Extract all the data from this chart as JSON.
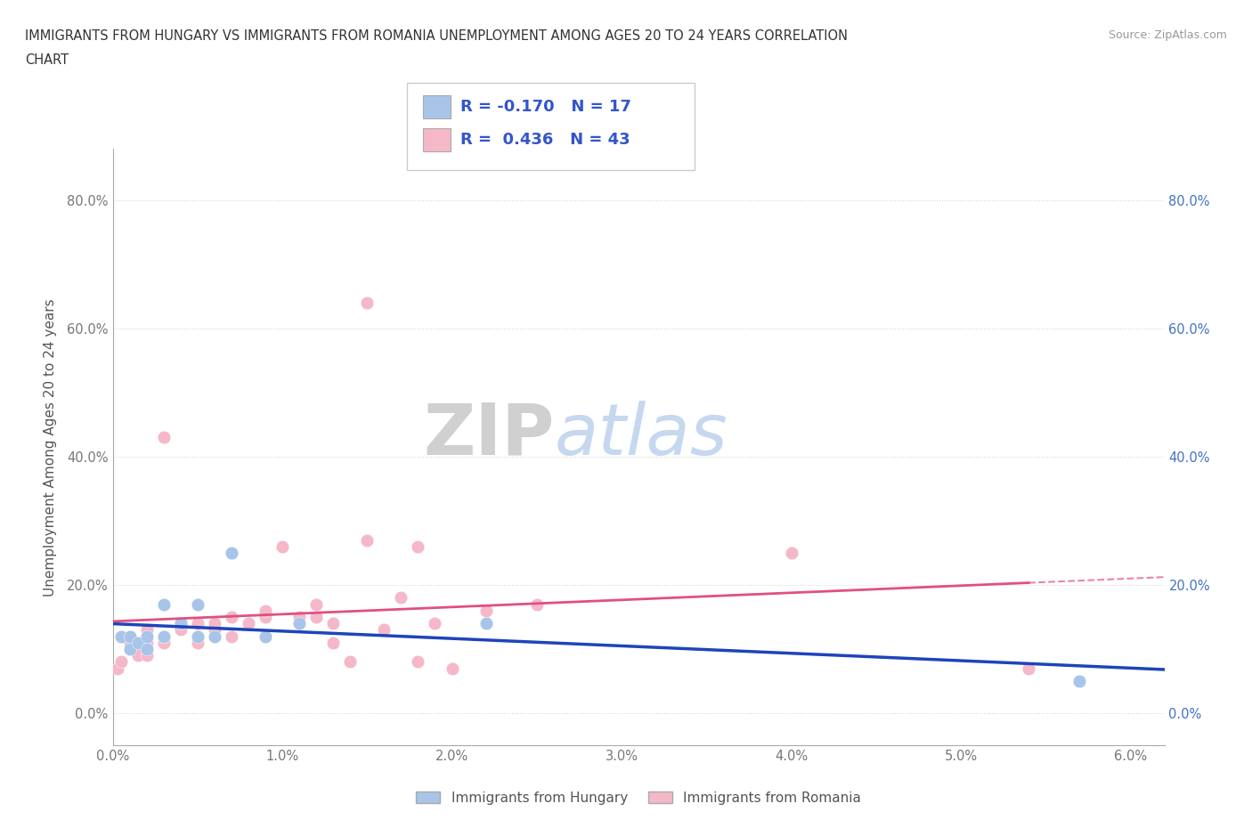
{
  "title_line1": "IMMIGRANTS FROM HUNGARY VS IMMIGRANTS FROM ROMANIA UNEMPLOYMENT AMONG AGES 20 TO 24 YEARS CORRELATION",
  "title_line2": "CHART",
  "source_text": "Source: ZipAtlas.com",
  "ylabel": "Unemployment Among Ages 20 to 24 years",
  "xlim": [
    0.0,
    0.062
  ],
  "ylim": [
    -0.05,
    0.88
  ],
  "xticks": [
    0.0,
    0.01,
    0.02,
    0.03,
    0.04,
    0.05,
    0.06
  ],
  "yticks": [
    0.0,
    0.2,
    0.4,
    0.6,
    0.8
  ],
  "ytick_labels": [
    "0.0%",
    "20.0%",
    "40.0%",
    "60.0%",
    "80.0%"
  ],
  "xtick_labels": [
    "0.0%",
    "1.0%",
    "2.0%",
    "3.0%",
    "4.0%",
    "5.0%",
    "6.0%"
  ],
  "hungary_color": "#a8c4e8",
  "romania_color": "#f5b8c8",
  "hungary_R": -0.17,
  "hungary_N": 17,
  "romania_R": 0.436,
  "romania_N": 43,
  "hungary_line_color": "#1e44bb",
  "romania_line_color": "#e05080",
  "watermark_zip": "ZIP",
  "watermark_atlas": "atlas",
  "legend_label_hungary": "Immigrants from Hungary",
  "legend_label_romania": "Immigrants from Romania",
  "hungary_x": [
    0.0005,
    0.001,
    0.001,
    0.0015,
    0.002,
    0.002,
    0.003,
    0.003,
    0.004,
    0.005,
    0.005,
    0.006,
    0.007,
    0.009,
    0.011,
    0.022,
    0.057
  ],
  "hungary_y": [
    0.12,
    0.1,
    0.12,
    0.11,
    0.1,
    0.12,
    0.12,
    0.17,
    0.14,
    0.12,
    0.17,
    0.12,
    0.25,
    0.12,
    0.14,
    0.14,
    0.05
  ],
  "romania_x": [
    0.0003,
    0.0005,
    0.001,
    0.001,
    0.001,
    0.0015,
    0.002,
    0.002,
    0.002,
    0.003,
    0.003,
    0.003,
    0.004,
    0.004,
    0.005,
    0.005,
    0.005,
    0.006,
    0.006,
    0.007,
    0.007,
    0.008,
    0.009,
    0.009,
    0.01,
    0.011,
    0.012,
    0.012,
    0.013,
    0.013,
    0.014,
    0.015,
    0.015,
    0.016,
    0.017,
    0.018,
    0.018,
    0.019,
    0.02,
    0.022,
    0.025,
    0.04,
    0.054
  ],
  "romania_y": [
    0.07,
    0.08,
    0.1,
    0.11,
    0.12,
    0.09,
    0.09,
    0.11,
    0.13,
    0.11,
    0.12,
    0.43,
    0.13,
    0.14,
    0.12,
    0.14,
    0.11,
    0.13,
    0.14,
    0.12,
    0.15,
    0.14,
    0.15,
    0.16,
    0.26,
    0.15,
    0.15,
    0.17,
    0.11,
    0.14,
    0.08,
    0.64,
    0.27,
    0.13,
    0.18,
    0.26,
    0.08,
    0.14,
    0.07,
    0.16,
    0.17,
    0.25,
    0.07
  ],
  "background_color": "#ffffff",
  "grid_color": "#d8d8d8",
  "right_tick_color": "#4472c4",
  "left_tick_color": "#777777"
}
